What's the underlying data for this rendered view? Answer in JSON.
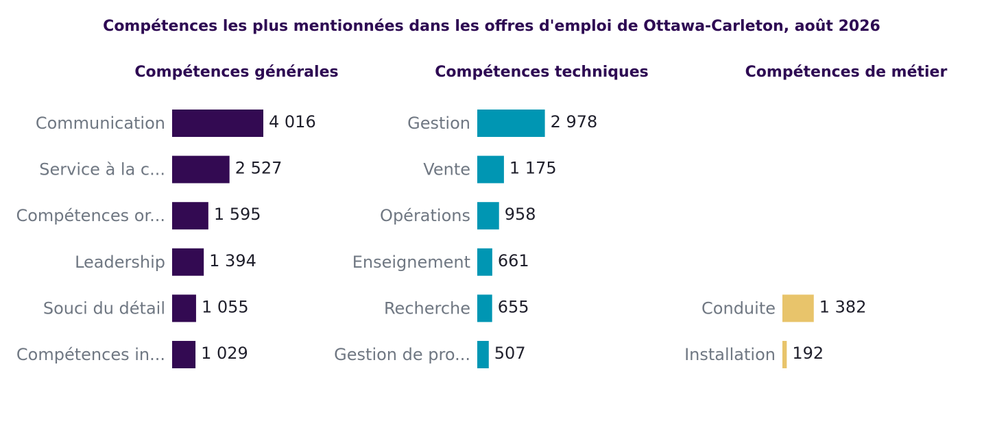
{
  "title": "Compétences les plus mentionnées dans les offres d'emploi de Ottawa-Carleton, août 2026",
  "chart_data": [
    {
      "type": "bar",
      "orientation": "horizontal",
      "title": "Compétences générales",
      "color": "#330a52",
      "categories": [
        "Communication",
        "Service à la c...",
        "Compétences or...",
        "Leadership",
        "Souci du détail",
        "Compétences in..."
      ],
      "values": [
        4016,
        2527,
        1595,
        1394,
        1055,
        1029
      ],
      "value_labels": [
        "4 016",
        "2 527",
        "1 595",
        "1 394",
        "1 055",
        "1 029"
      ]
    },
    {
      "type": "bar",
      "orientation": "horizontal",
      "title": "Compétences techniques",
      "color": "#0096b3",
      "categories": [
        "Gestion",
        "Vente",
        "Opérations",
        "Enseignement",
        "Recherche",
        "Gestion de pro..."
      ],
      "values": [
        2978,
        1175,
        958,
        661,
        655,
        507
      ],
      "value_labels": [
        "2 978",
        "1 175",
        "958",
        "661",
        "655",
        "507"
      ]
    },
    {
      "type": "bar",
      "orientation": "horizontal",
      "title": "Compétences de métier",
      "color": "#e8c46b",
      "categories": [
        "",
        "",
        "",
        "",
        "Conduite",
        "Installation"
      ],
      "values": [
        null,
        null,
        null,
        null,
        1382,
        192
      ],
      "value_labels": [
        "",
        "",
        "",
        "",
        "1 382",
        "192"
      ]
    }
  ]
}
